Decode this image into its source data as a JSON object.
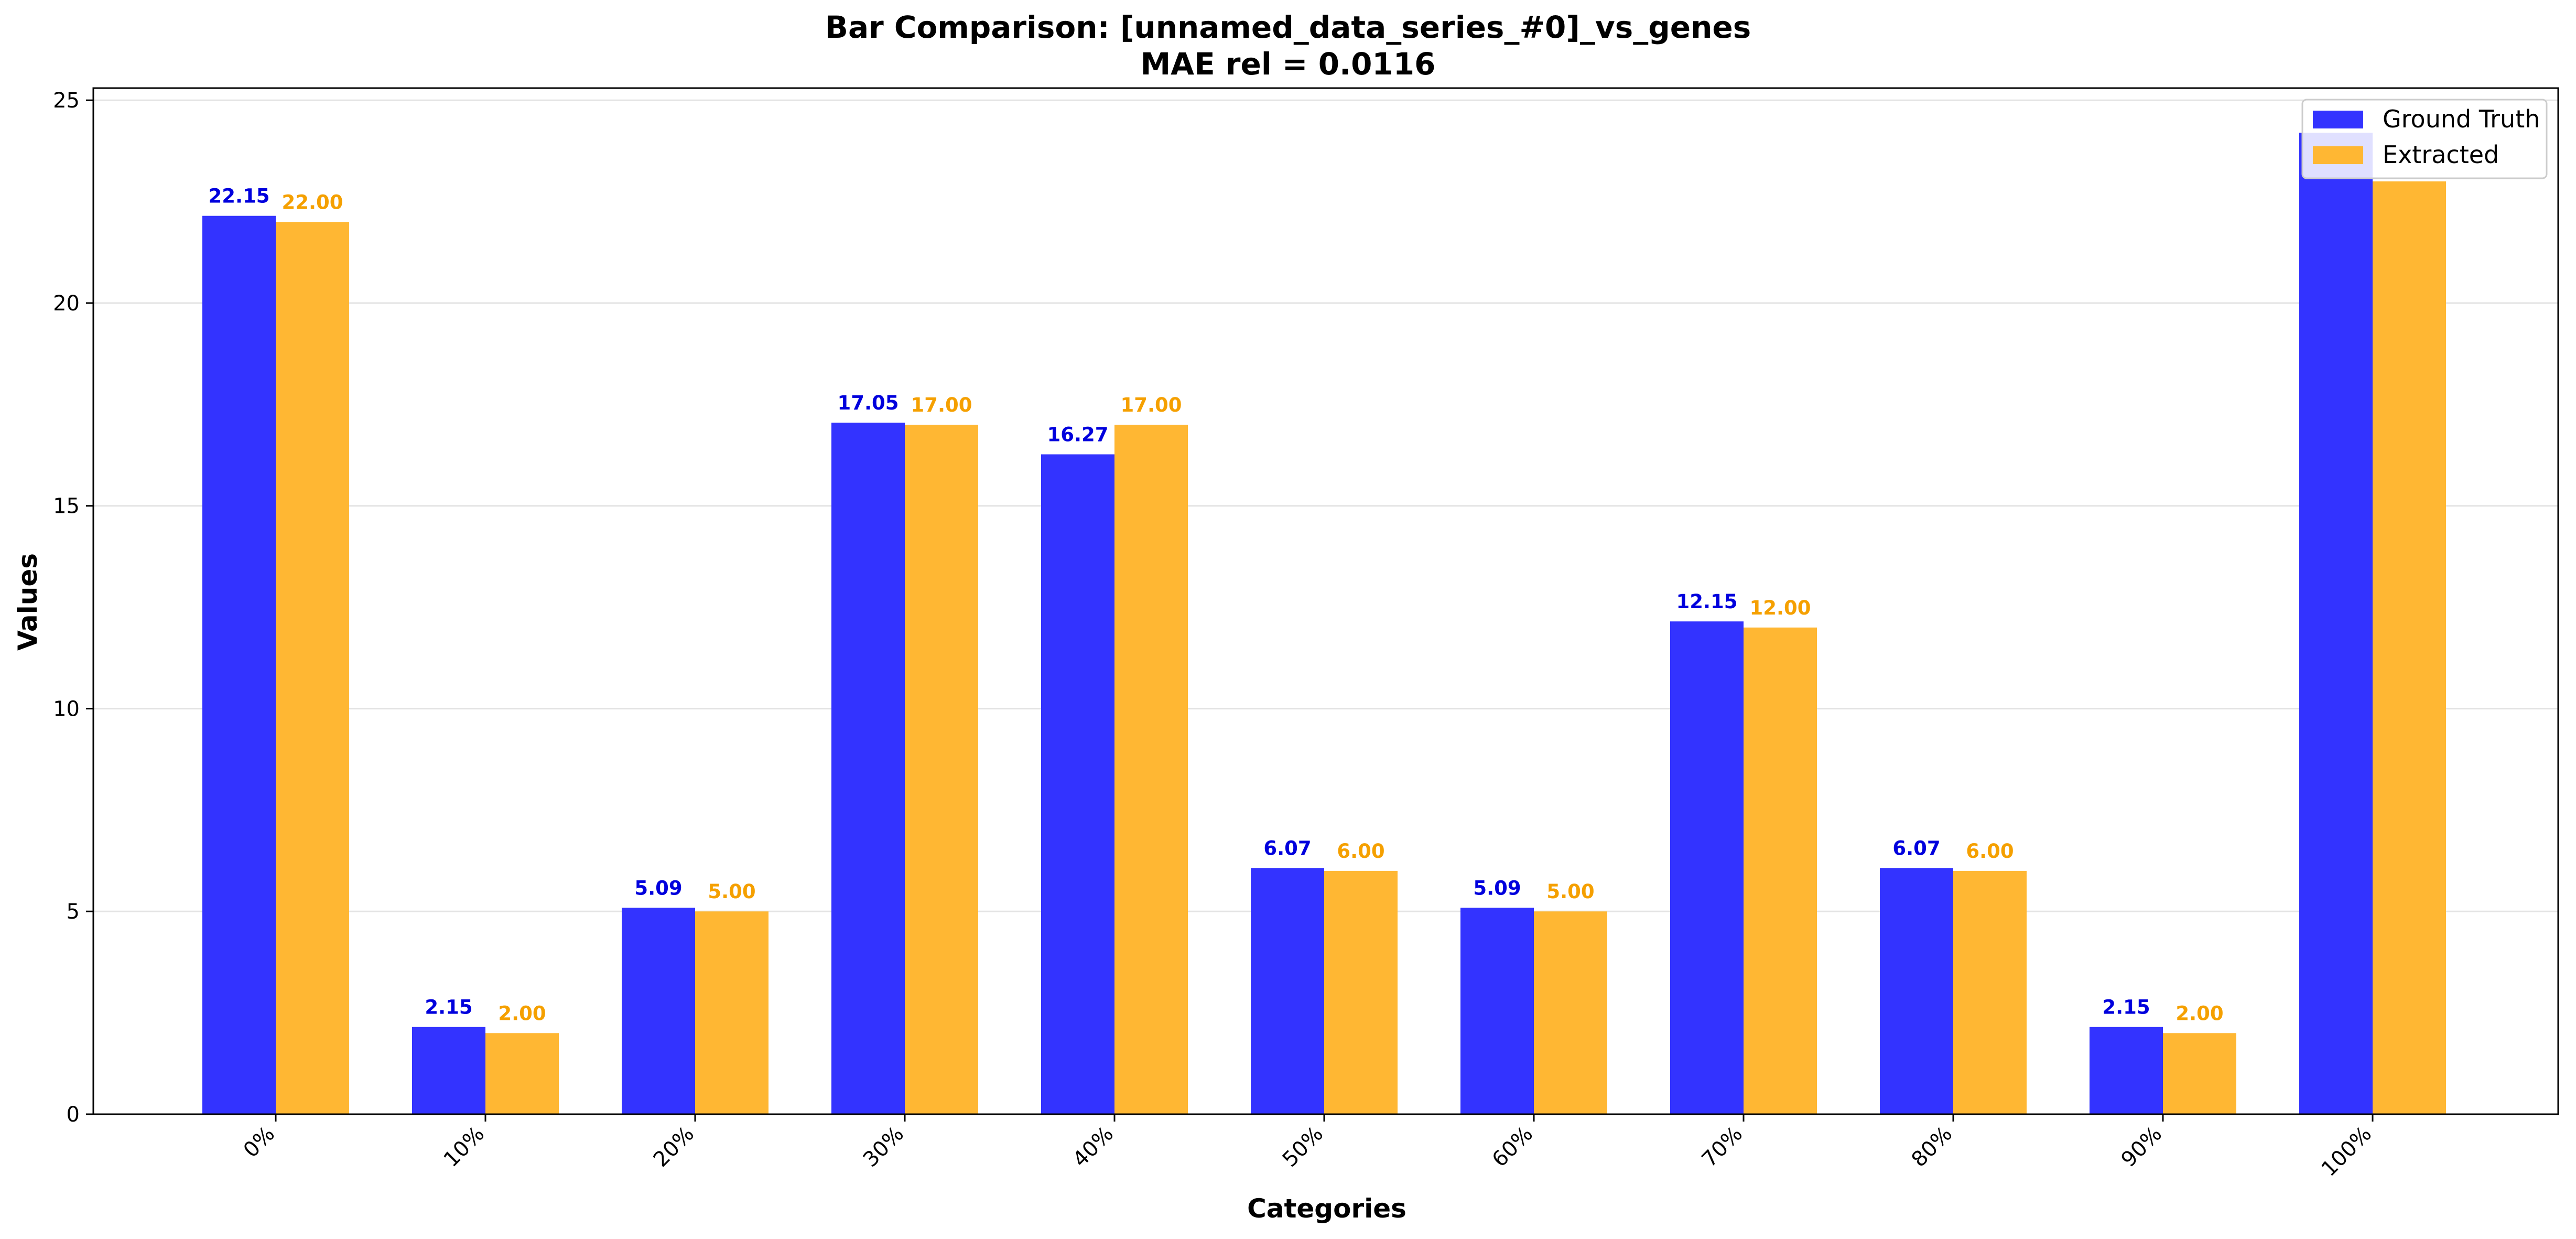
{
  "chart_data": {
    "type": "bar",
    "title": "Bar Comparison: [unnamed_data_series_#0]_vs_genes",
    "subtitle": "MAE rel = 0.0116",
    "xlabel": "Categories",
    "ylabel": "Values",
    "categories": [
      "0%",
      "10%",
      "20%",
      "30%",
      "40%",
      "50%",
      "60%",
      "70%",
      "80%",
      "90%",
      "100%"
    ],
    "series": [
      {
        "name": "Ground Truth",
        "color": "#3333ff",
        "label_color": "#0000dd",
        "values": [
          22.15,
          2.15,
          5.09,
          17.05,
          16.27,
          6.07,
          5.09,
          12.15,
          6.07,
          2.15,
          24.2
        ],
        "labels": [
          "22.15",
          "2.15",
          "5.09",
          "17.05",
          "16.27",
          "6.07",
          "5.09",
          "12.15",
          "6.07",
          "2.15",
          ""
        ]
      },
      {
        "name": "Extracted",
        "color": "#ffb733",
        "label_color": "#f5a000",
        "values": [
          22.0,
          2.0,
          5.0,
          17.0,
          17.0,
          6.0,
          5.0,
          12.0,
          6.0,
          2.0,
          23.0
        ],
        "labels": [
          "22.00",
          "2.00",
          "5.00",
          "17.00",
          "17.00",
          "6.00",
          "5.00",
          "12.00",
          "6.00",
          "2.00",
          ""
        ]
      }
    ],
    "ylim": [
      0,
      25.3
    ],
    "yticks": [
      "0",
      "5",
      "10",
      "15",
      "20",
      "25"
    ],
    "grid": "horizontal",
    "legend_position": "top-right"
  }
}
